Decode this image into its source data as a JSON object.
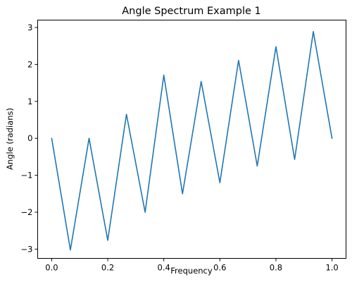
{
  "chart_data": {
    "type": "line",
    "title": "Angle Spectrum Example 1",
    "xlabel": "Frequency",
    "ylabel": "Angle (radians)",
    "xlim": [
      -0.05,
      1.05
    ],
    "ylim": [
      -3.25,
      3.2
    ],
    "xticks": [
      0.0,
      0.2,
      0.4,
      0.6,
      0.8,
      1.0
    ],
    "xtick_labels": [
      "0.0",
      "0.2",
      "0.4",
      "0.6",
      "0.8",
      "1.0"
    ],
    "yticks": [
      -3,
      -2,
      -1,
      0,
      1,
      2,
      3
    ],
    "ytick_labels": [
      "−3",
      "−2",
      "−1",
      "0",
      "1",
      "2",
      "3"
    ],
    "grid": false,
    "series_color": "#1f77b4",
    "series": [
      {
        "x": [
          0.0,
          0.0667,
          0.1333,
          0.2,
          0.2667,
          0.3333,
          0.4,
          0.4667,
          0.5333,
          0.6,
          0.6667,
          0.7333,
          0.8,
          0.8667,
          0.9333,
          1.0
        ],
        "values": [
          0.0,
          -3.02,
          0.0,
          -2.76,
          0.65,
          -2.0,
          1.71,
          -1.5,
          1.54,
          -1.2,
          2.11,
          -0.75,
          2.48,
          -0.57,
          2.89,
          0.0
        ]
      }
    ]
  }
}
